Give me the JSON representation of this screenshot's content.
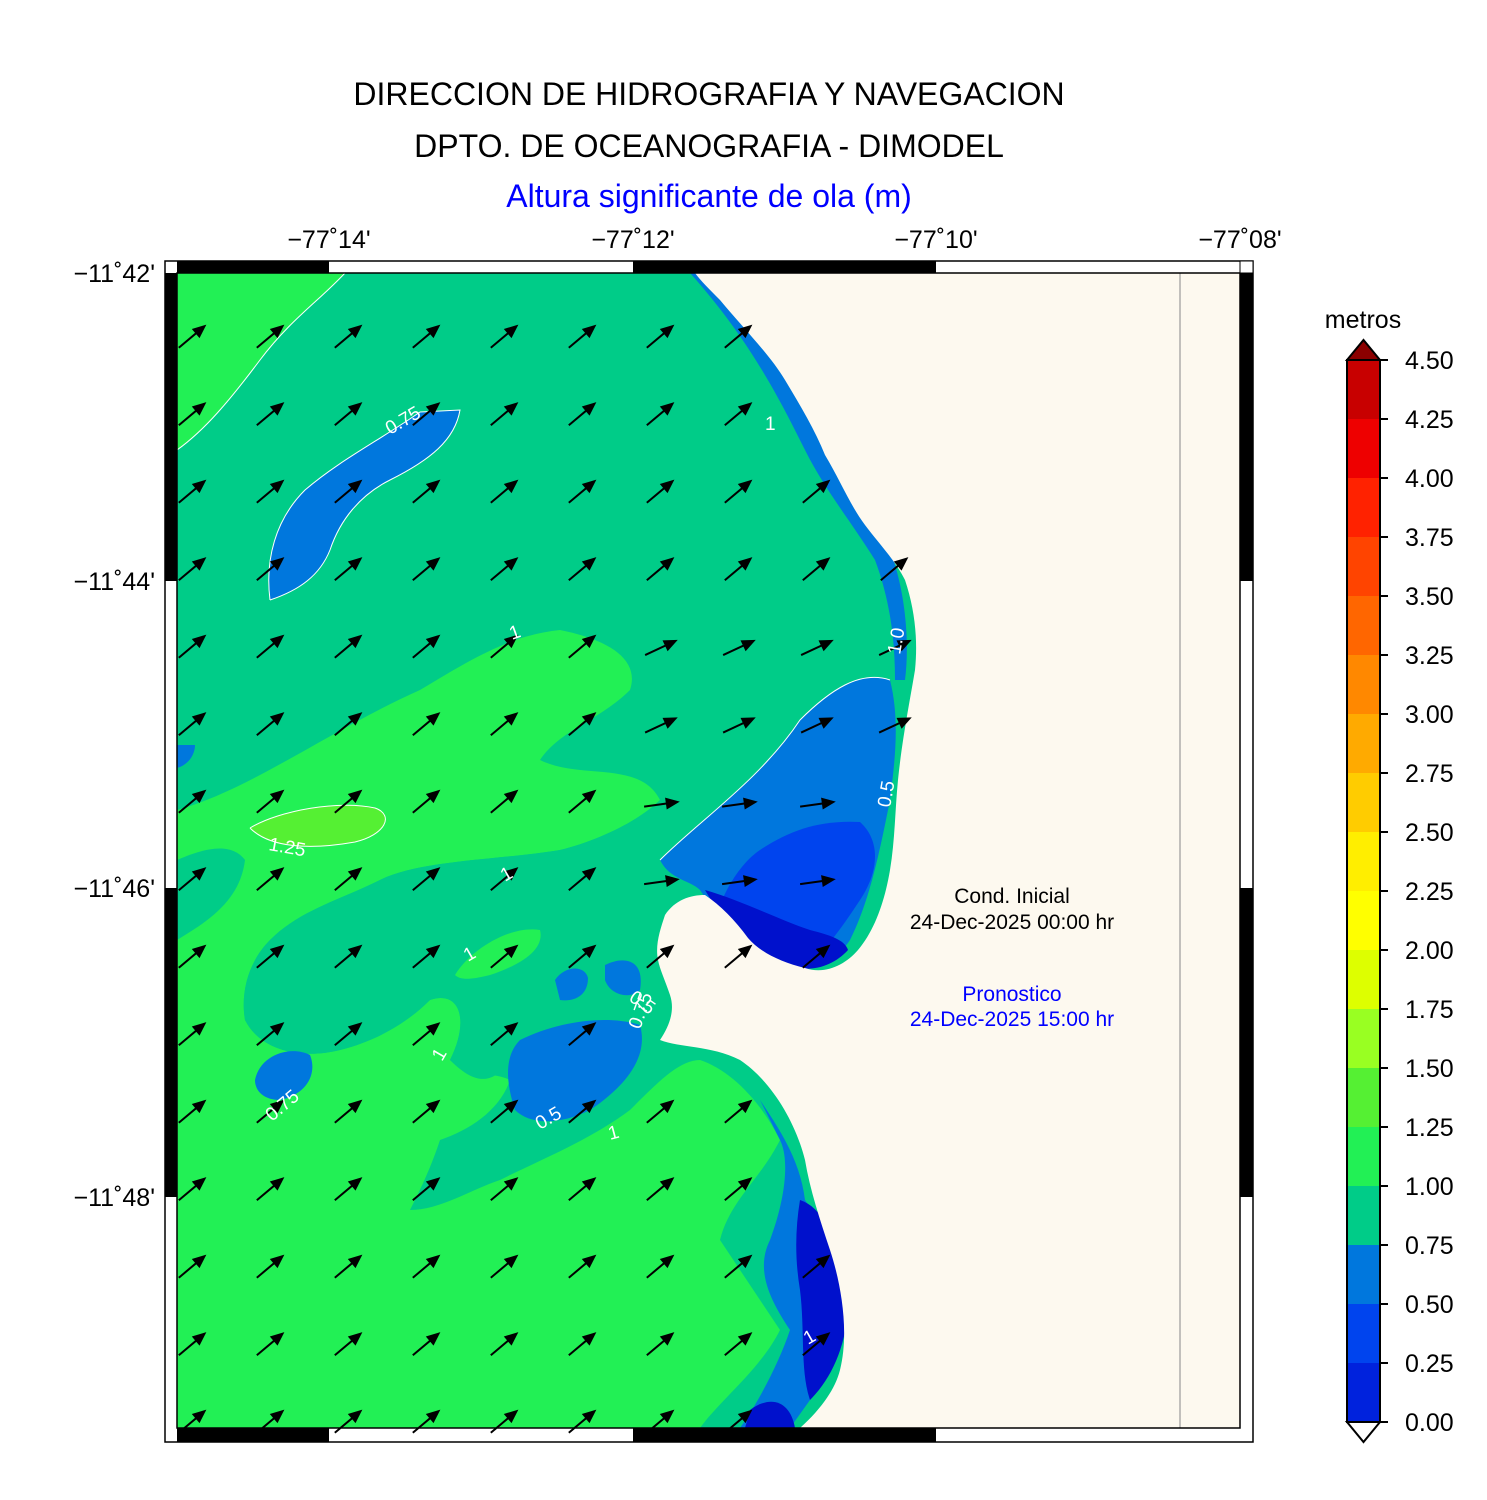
{
  "header": {
    "title": "DIRECCION DE HIDROGRAFIA Y NAVEGACION",
    "subtitle": "DPTO. DE OCEANOGRAFIA - DIMODEL",
    "variable": "Altura significante de ola (m)"
  },
  "axes": {
    "lon_ticks": [
      "−77˚14'",
      "−77˚12'",
      "−77˚10'",
      "−77˚08'"
    ],
    "lat_ticks": [
      "−11˚42'",
      "−11˚44'",
      "−11˚46'",
      "−11˚48'"
    ]
  },
  "annotations": {
    "initial_label": "Cond. Inicial",
    "initial_time": "24-Dec-2025 00:00 hr",
    "forecast_label": "Pronostico",
    "forecast_time": "24-Dec-2025 15:00 hr",
    "forecast_color": "#0000ff"
  },
  "contour_labels": [
    "0.75",
    "1",
    "1",
    "1.25",
    "1",
    "1",
    "0.5",
    "0.5",
    "0.5",
    "0.75",
    "1",
    "0.75",
    "1",
    "1.0",
    "1"
  ],
  "colorbar": {
    "title": "metros",
    "levels": [
      "4.50",
      "4.25",
      "4.00",
      "3.75",
      "3.50",
      "3.25",
      "3.00",
      "2.75",
      "2.50",
      "2.25",
      "2.00",
      "1.75",
      "1.50",
      "1.25",
      "1.00",
      "0.75",
      "0.50",
      "0.25",
      "0.00"
    ],
    "colors": [
      "#c80000",
      "#ee0000",
      "#ff2200",
      "#ff4400",
      "#ff6600",
      "#ff8800",
      "#ffaa00",
      "#ffcc00",
      "#ffee00",
      "#ffff00",
      "#ddff00",
      "#99ff22",
      "#55f033",
      "#22f055",
      "#00cc88",
      "#0077dd",
      "#0044ee",
      "#0022dd",
      "#0011cc"
    ]
  },
  "map_colors": {
    "land": "#fdf9ef",
    "band_075_100": "#00cc88",
    "band_100_125": "#22f055",
    "band_125_150": "#55f033",
    "band_050_075": "#0077dd",
    "band_025_050": "#0044ee",
    "band_000_025": "#0011cc",
    "arrow": "#000000"
  }
}
